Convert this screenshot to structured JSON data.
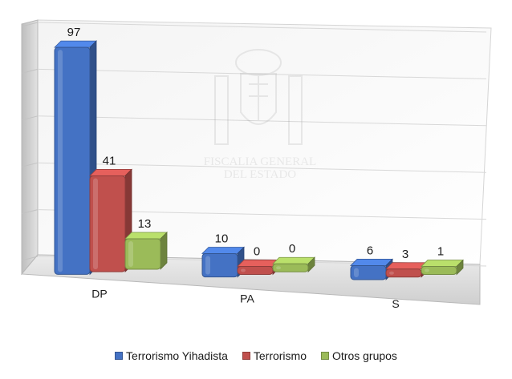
{
  "chart_data": {
    "type": "bar",
    "categories": [
      "DP",
      "PA",
      "S"
    ],
    "series": [
      {
        "name": "Terrorismo Yihadista",
        "values": [
          97,
          10,
          6
        ],
        "color": "#4472C4"
      },
      {
        "name": "Terrorismo",
        "values": [
          41,
          0,
          3
        ],
        "color": "#C0504D"
      },
      {
        "name": "Otros grupos",
        "values": [
          13,
          0,
          1
        ],
        "color": "#9BBB59"
      }
    ],
    "ylim": [
      0,
      100
    ],
    "grid": true,
    "legend_position": "bottom",
    "title": "",
    "xlabel": "",
    "ylabel": ""
  },
  "watermark": {
    "text_line1": "FISCALIA GENERAL",
    "text_line2": "DEL ESTADO",
    "icon": "coat-of-arms-icon"
  }
}
